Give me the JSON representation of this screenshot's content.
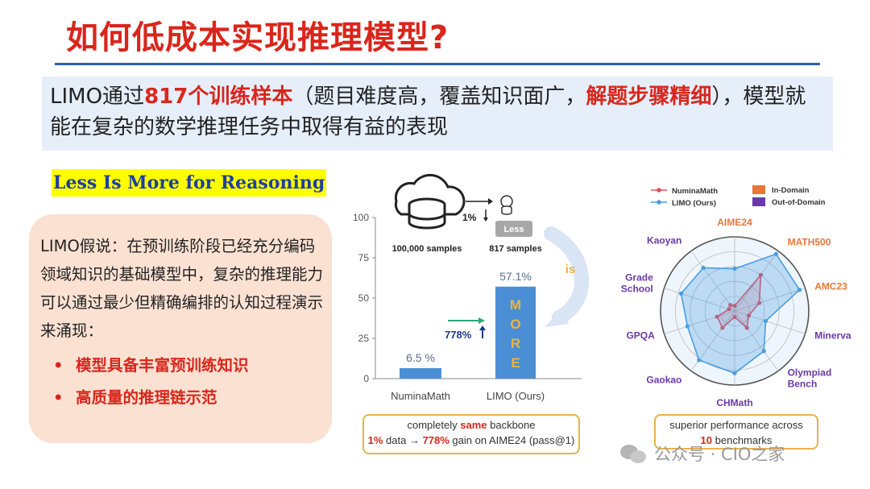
{
  "title": "如何低成本实现推理模型?",
  "summary": {
    "p1": "LIMO通过",
    "p2": "817个训练样本",
    "p3": "（题目难度高，覆盖知识面广，",
    "p4": "解题步骤精细",
    "p5": "），模型就能在复杂的数学推理任务中取得有益的表现"
  },
  "limo_title": "Less Is More for Reasoning",
  "hypothesis": {
    "text": "LIMO假说：在预训练阶段已经充分编码领域知识的基础模型中，复杂的推理能力可以通过最少但精确编排的认知过程演示来涌现：",
    "bullets": [
      "模型具备丰富预训练知识",
      "高质量的推理链示范"
    ]
  },
  "bar_figure": {
    "samples_left": "100,000 samples",
    "samples_right": "817 samples",
    "less_label": "Less",
    "arrow_label": "1%",
    "is_label": "is",
    "more_letters": [
      "M",
      "O",
      "R",
      "E"
    ],
    "gain_label": "778%"
  },
  "chart_data": [
    {
      "type": "bar",
      "categories": [
        "NuminaMath",
        "LIMO (Ours)"
      ],
      "values": [
        6.5,
        57.1
      ],
      "value_labels": [
        "6.5 %",
        "57.1%"
      ],
      "ylim": [
        0,
        100
      ],
      "yticks": [
        0,
        25,
        50,
        75,
        100
      ],
      "colors": [
        "#4a8fd6",
        "#4a8fd6"
      ]
    },
    {
      "type": "radar",
      "axes": [
        "AIME24",
        "MATH500",
        "AMC23",
        "Minerva",
        "Olympiad Bench",
        "CHMath",
        "Gaokao",
        "GPQA",
        "Grade School",
        "Kaoyan"
      ],
      "axis_colors": [
        "#e8763a",
        "#e8763a",
        "#e8763a",
        "#6a3aa8",
        "#6a3aa8",
        "#6a3aa8",
        "#6a3aa8",
        "#6a3aa8",
        "#6a3aa8",
        "#6a3aa8"
      ],
      "rmax": 100,
      "series": [
        {
          "name": "NuminaMath",
          "color": "#e0505a",
          "values": [
            7,
            60,
            35,
            20,
            28,
            8,
            28,
            25,
            8,
            10
          ]
        },
        {
          "name": "LIMO (Ours)",
          "color": "#4a9de0",
          "values": [
            57,
            95,
            92,
            44,
            67,
            84,
            82,
            67,
            76,
            72
          ]
        }
      ],
      "legend": {
        "in_domain": "In-Domain",
        "out_domain": "Out-of-Domain",
        "in_color": "#e8763a",
        "out_color": "#6a3aa8"
      }
    }
  ],
  "bar_note": {
    "line1a": "completely ",
    "line1b": "same",
    "line1c": " backbone",
    "line2a": "1%",
    "line2b": " data → ",
    "line2c": "778%",
    "line2d": " gain on AIME24 (pass@1)"
  },
  "radar_note": {
    "line1": "superior performance across",
    "line2a": "10",
    "line2b": " benchmarks"
  },
  "watermark": "公众号 · CIO之家"
}
